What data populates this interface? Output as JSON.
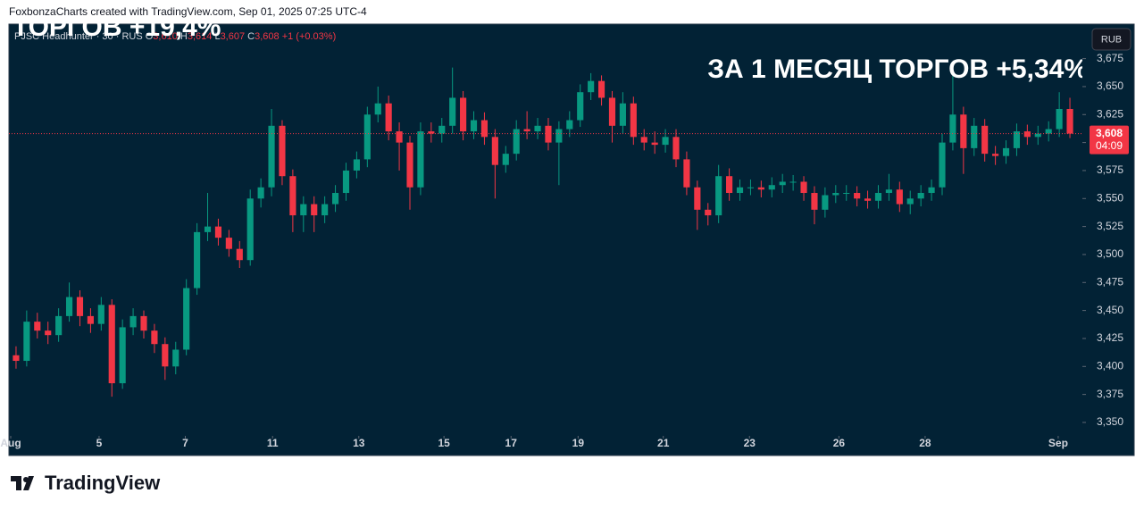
{
  "header": "FoxbonzaCharts created with TradingView.com, Sep 01, 2025 07:25 UTC-4",
  "footer": "TradingView",
  "chart_data": {
    "type": "candlestick",
    "symbol": "PJSC Headhunter · 30 · RUS",
    "legend_ohlc": [
      {
        "key": "O",
        "value": "3,610"
      },
      {
        "key": "H",
        "value": "3,614"
      },
      {
        "key": "L",
        "value": "3,607"
      },
      {
        "key": "C",
        "value": "3,608"
      }
    ],
    "change": "+1 (+0.03%)",
    "currency": "RUB",
    "annotations": [
      "ЗА 1 МЕСЯЦ ТОРГОВ +5,34%",
      "ТОРГОВ +19,4%"
    ],
    "last_price": {
      "value": 3608,
      "label": "3,608"
    },
    "countdown": "04:09",
    "up_color": "#089981",
    "down_color": "#f23645",
    "background": "#022235",
    "grid": false,
    "xlim": [
      0,
      100
    ],
    "xticks": [
      {
        "value": 0,
        "label": "Aug"
      },
      {
        "value": 8.3,
        "label": "5"
      },
      {
        "value": 16.4,
        "label": "7"
      },
      {
        "value": 24.6,
        "label": "11"
      },
      {
        "value": 32.7,
        "label": "13"
      },
      {
        "value": 40.7,
        "label": "15"
      },
      {
        "value": 47,
        "label": "17"
      },
      {
        "value": 53.3,
        "label": "19"
      },
      {
        "value": 61.3,
        "label": "21"
      },
      {
        "value": 69.4,
        "label": "23"
      },
      {
        "value": 77.8,
        "label": "26"
      },
      {
        "value": 85.9,
        "label": "28"
      },
      {
        "value": 98.4,
        "label": "Sep"
      }
    ],
    "ylim": [
      3338,
      3705
    ],
    "yticks": [
      {
        "value": 3350,
        "label": "3,350"
      },
      {
        "value": 3375,
        "label": "3,375"
      },
      {
        "value": 3400,
        "label": "3,400"
      },
      {
        "value": 3425,
        "label": "3,425"
      },
      {
        "value": 3450,
        "label": "3,450"
      },
      {
        "value": 3475,
        "label": "3,475"
      },
      {
        "value": 3500,
        "label": "3,500"
      },
      {
        "value": 3525,
        "label": "3,525"
      },
      {
        "value": 3550,
        "label": "3,550"
      },
      {
        "value": 3575,
        "label": "3,575"
      },
      {
        "value": 3600,
        "label": "3,600"
      },
      {
        "value": 3625,
        "label": "3,625"
      },
      {
        "value": 3650,
        "label": "3,650"
      },
      {
        "value": 3675,
        "label": "3,675"
      }
    ],
    "open": [
      3410,
      3405,
      3440,
      3432,
      3428,
      3445,
      3462,
      3445,
      3438,
      3455,
      3385,
      3435,
      3445,
      3432,
      3420,
      3400,
      3415,
      3470,
      3520,
      3525,
      3515,
      3505,
      3495,
      3550,
      3560,
      3615,
      3570,
      3535,
      3545,
      3535,
      3545,
      3555,
      3575,
      3585,
      3625,
      3635,
      3610,
      3600,
      3560,
      3610,
      3608,
      3615,
      3640,
      3610,
      3620,
      3605,
      3580,
      3590,
      3612,
      3610,
      3615,
      3600,
      3612,
      3620,
      3645,
      3655,
      3640,
      3615,
      3635,
      3605,
      3600,
      3598,
      3605,
      3585,
      3560,
      3540,
      3535,
      3570,
      3555,
      3560,
      3560,
      3558,
      3562,
      3565,
      3565,
      3555,
      3540,
      3553,
      3555,
      3555,
      3550,
      3548,
      3555,
      3558,
      3545,
      3550,
      3555,
      3560,
      3600,
      3625,
      3595,
      3615,
      3590,
      3588,
      3595,
      3610,
      3605,
      3608,
      3612,
      3630
    ],
    "high": [
      3418,
      3450,
      3448,
      3440,
      3452,
      3475,
      3468,
      3452,
      3462,
      3460,
      3442,
      3452,
      3450,
      3438,
      3426,
      3422,
      3478,
      3528,
      3555,
      3532,
      3522,
      3512,
      3558,
      3568,
      3630,
      3620,
      3576,
      3552,
      3552,
      3552,
      3562,
      3582,
      3592,
      3632,
      3650,
      3642,
      3618,
      3606,
      3618,
      3618,
      3622,
      3667,
      3646,
      3628,
      3627,
      3612,
      3597,
      3620,
      3628,
      3622,
      3622,
      3619,
      3628,
      3652,
      3662,
      3660,
      3646,
      3645,
      3641,
      3612,
      3610,
      3612,
      3612,
      3592,
      3566,
      3546,
      3580,
      3577,
      3567,
      3567,
      3566,
      3569,
      3572,
      3571,
      3570,
      3561,
      3560,
      3562,
      3562,
      3561,
      3557,
      3562,
      3572,
      3565,
      3557,
      3562,
      3567,
      3608,
      3660,
      3632,
      3622,
      3621,
      3597,
      3602,
      3617,
      3616,
      3615,
      3619,
      3645,
      3640
    ],
    "low": [
      3398,
      3400,
      3425,
      3420,
      3422,
      3440,
      3436,
      3430,
      3432,
      3373,
      3380,
      3428,
      3425,
      3412,
      3388,
      3393,
      3410,
      3464,
      3512,
      3508,
      3498,
      3488,
      3490,
      3542,
      3552,
      3562,
      3520,
      3520,
      3520,
      3528,
      3538,
      3548,
      3568,
      3578,
      3618,
      3602,
      3575,
      3540,
      3553,
      3600,
      3600,
      3608,
      3602,
      3603,
      3598,
      3550,
      3573,
      3584,
      3603,
      3603,
      3593,
      3562,
      3605,
      3614,
      3638,
      3633,
      3600,
      3608,
      3598,
      3593,
      3590,
      3591,
      3578,
      3553,
      3522,
      3526,
      3528,
      3548,
      3548,
      3553,
      3551,
      3551,
      3555,
      3557,
      3548,
      3527,
      3533,
      3546,
      3548,
      3543,
      3541,
      3541,
      3548,
      3538,
      3536,
      3543,
      3548,
      3553,
      3593,
      3572,
      3588,
      3583,
      3580,
      3581,
      3588,
      3598,
      3598,
      3601,
      3605,
      3604
    ],
    "close": [
      3405,
      3440,
      3432,
      3428,
      3445,
      3462,
      3445,
      3438,
      3455,
      3385,
      3435,
      3445,
      3432,
      3420,
      3400,
      3415,
      3470,
      3520,
      3525,
      3515,
      3505,
      3495,
      3550,
      3560,
      3615,
      3570,
      3535,
      3545,
      3535,
      3545,
      3555,
      3575,
      3585,
      3625,
      3635,
      3610,
      3600,
      3560,
      3610,
      3608,
      3615,
      3640,
      3610,
      3620,
      3605,
      3580,
      3590,
      3612,
      3610,
      3615,
      3600,
      3612,
      3620,
      3645,
      3655,
      3640,
      3615,
      3635,
      3605,
      3600,
      3598,
      3605,
      3585,
      3560,
      3540,
      3535,
      3570,
      3555,
      3560,
      3560,
      3558,
      3562,
      3565,
      3565,
      3555,
      3540,
      3553,
      3555,
      3555,
      3550,
      3548,
      3555,
      3558,
      3545,
      3550,
      3555,
      3560,
      3600,
      3625,
      3595,
      3615,
      3590,
      3588,
      3595,
      3610,
      3605,
      3608,
      3612,
      3630,
      3608
    ]
  }
}
